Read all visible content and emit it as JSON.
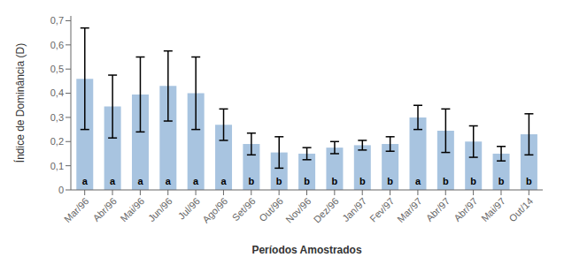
{
  "chart_data": {
    "type": "bar",
    "categories": [
      "Mar/96",
      "Abr/96",
      "Mai/96",
      "Jun/96",
      "Jul/96",
      "Ago/96",
      "Set/96",
      "Out/96",
      "Nov/96",
      "Dez/96",
      "Jan/97",
      "Fev/97",
      "Mar/97",
      "Abr/97",
      "Abr/97",
      "Mai/97",
      "Out/14"
    ],
    "values": [
      0.46,
      0.345,
      0.395,
      0.43,
      0.4,
      0.27,
      0.19,
      0.155,
      0.15,
      0.175,
      0.185,
      0.19,
      0.3,
      0.245,
      0.2,
      0.15,
      0.23
    ],
    "errors": [
      0.21,
      0.13,
      0.155,
      0.145,
      0.15,
      0.065,
      0.045,
      0.065,
      0.025,
      0.025,
      0.02,
      0.03,
      0.05,
      0.09,
      0.065,
      0.03,
      0.085
    ],
    "bar_labels": [
      "a",
      "a",
      "a",
      "a",
      "a",
      "a",
      "b",
      "b",
      "b",
      "b",
      "b",
      "b",
      "a",
      "b",
      "b",
      "b",
      "b"
    ],
    "color": "#a8c4e0",
    "ylabel": "Índice de Dominância (D)",
    "xlabel": "Períodos Amostrados",
    "ylim": [
      0,
      0.72
    ],
    "yticks": [
      0,
      {
        "value": 0.1,
        "label": "0,1"
      },
      {
        "value": 0.2,
        "label": "0,2"
      },
      {
        "value": 0.3,
        "label": "0,3"
      },
      {
        "value": 0.4,
        "label": "0,4"
      },
      {
        "value": 0.5,
        "label": "0,5"
      },
      {
        "value": 0.6,
        "label": "0,6"
      },
      {
        "value": 0.7,
        "label": "0,7"
      }
    ],
    "grid": false
  }
}
